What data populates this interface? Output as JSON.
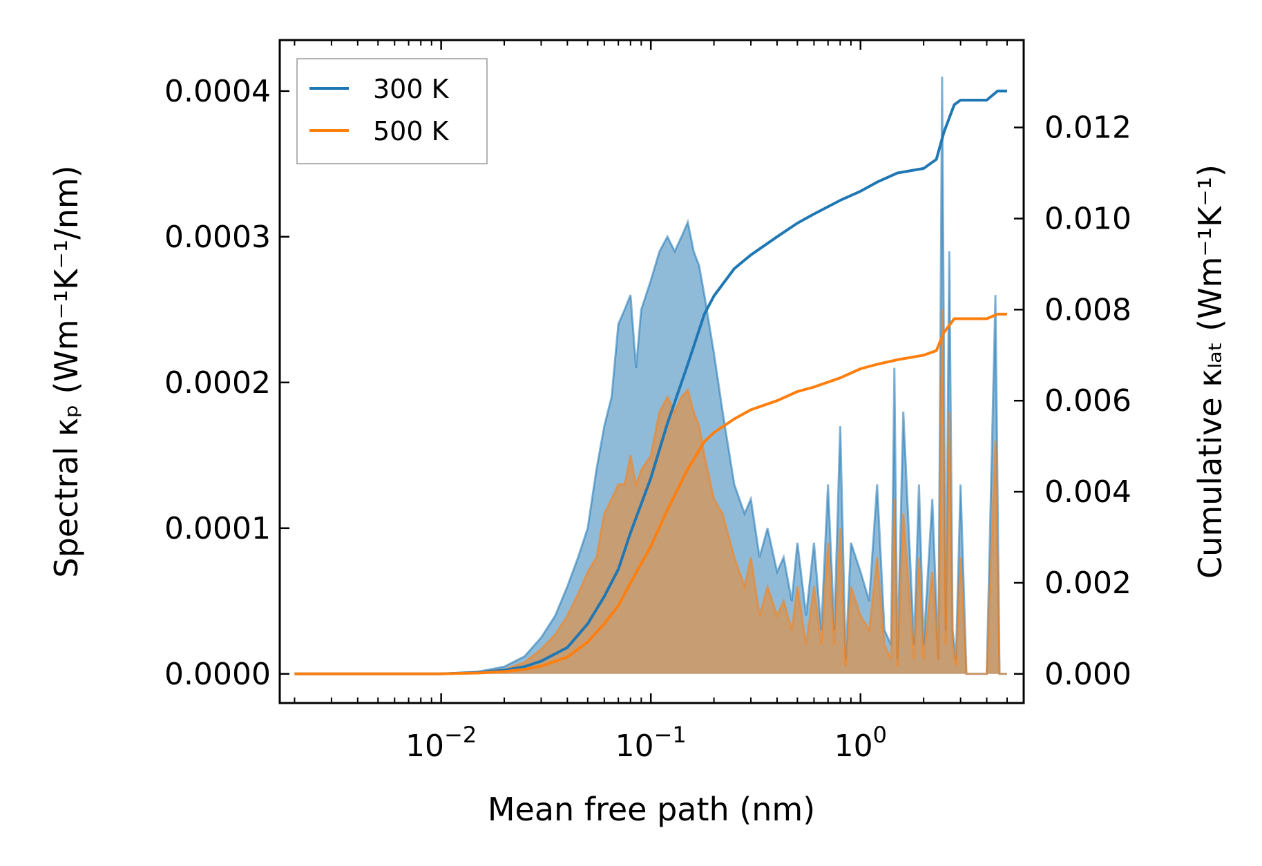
{
  "chart_data": {
    "type": "line",
    "xscale": "log",
    "xlabel": "Mean free path (nm)",
    "ylabel_left": "Spectral κₚ (Wm⁻¹K⁻¹/nm)",
    "ylabel_right": "Cumulative κₗₐₜ (Wm⁻¹K⁻¹)",
    "xlim": [
      0.0017,
      6.0
    ],
    "ylim_left": [
      -2e-05,
      0.000435
    ],
    "ylim_right": [
      -0.00064,
      0.01392
    ],
    "x_ticks": [
      0.01,
      0.1,
      1.0
    ],
    "x_tick_labels": [
      [
        "10",
        "−2"
      ],
      [
        "10",
        "−1"
      ],
      [
        "10",
        "0"
      ]
    ],
    "y_ticks_left": [
      0.0,
      0.0001,
      0.0002,
      0.0003,
      0.0004
    ],
    "y_tick_labels_left": [
      "0.0000",
      "0.0001",
      "0.0002",
      "0.0003",
      "0.0004"
    ],
    "y_ticks_right": [
      0.0,
      0.002,
      0.004,
      0.006,
      0.008,
      0.01,
      0.012
    ],
    "y_tick_labels_right": [
      "0.000",
      "0.002",
      "0.004",
      "0.006",
      "0.008",
      "0.010",
      "0.012"
    ],
    "legend": [
      "300 K",
      "500 K"
    ],
    "legend_position": "top-left",
    "colors": {
      "300K": "#1f77b4",
      "500K": "#ff7f0e"
    },
    "series": [
      {
        "name": "300 K",
        "axis": "right",
        "kind": "cumulative",
        "x": [
          0.002,
          0.005,
          0.01,
          0.015,
          0.02,
          0.025,
          0.03,
          0.04,
          0.05,
          0.06,
          0.07,
          0.08,
          0.1,
          0.12,
          0.15,
          0.18,
          0.2,
          0.25,
          0.3,
          0.4,
          0.5,
          0.6,
          0.8,
          1.0,
          1.2,
          1.5,
          2.0,
          2.3,
          2.5,
          2.8,
          3.0,
          4.0,
          4.5,
          5.0
        ],
        "values": [
          0.0,
          0.0,
          0.0,
          3e-05,
          8e-05,
          0.00016,
          0.00028,
          0.00058,
          0.0011,
          0.0017,
          0.0023,
          0.0031,
          0.0043,
          0.0055,
          0.0068,
          0.0079,
          0.0083,
          0.0089,
          0.0092,
          0.0096,
          0.0099,
          0.0101,
          0.0104,
          0.0106,
          0.0108,
          0.011,
          0.0111,
          0.0113,
          0.0119,
          0.0125,
          0.0126,
          0.0126,
          0.0128,
          0.0128
        ]
      },
      {
        "name": "500 K",
        "axis": "right",
        "kind": "cumulative",
        "x": [
          0.002,
          0.005,
          0.01,
          0.015,
          0.02,
          0.025,
          0.03,
          0.04,
          0.05,
          0.06,
          0.07,
          0.08,
          0.1,
          0.12,
          0.15,
          0.18,
          0.2,
          0.25,
          0.3,
          0.4,
          0.5,
          0.6,
          0.8,
          1.0,
          1.2,
          1.5,
          2.0,
          2.3,
          2.5,
          2.8,
          3.0,
          4.0,
          4.5,
          5.0
        ],
        "values": [
          0.0,
          0.0,
          0.0,
          2e-05,
          5e-05,
          0.0001,
          0.00017,
          0.00037,
          0.0007,
          0.0011,
          0.0015,
          0.002,
          0.0028,
          0.0036,
          0.0045,
          0.0051,
          0.0053,
          0.0056,
          0.0058,
          0.006,
          0.0062,
          0.0063,
          0.0065,
          0.0067,
          0.0068,
          0.0069,
          0.007,
          0.0071,
          0.0075,
          0.0078,
          0.0078,
          0.0078,
          0.0079,
          0.0079
        ]
      },
      {
        "name": "300 K",
        "axis": "left",
        "kind": "spectral",
        "x": [
          0.002,
          0.005,
          0.01,
          0.015,
          0.02,
          0.025,
          0.03,
          0.035,
          0.04,
          0.045,
          0.05,
          0.055,
          0.06,
          0.065,
          0.07,
          0.075,
          0.08,
          0.085,
          0.09,
          0.1,
          0.11,
          0.12,
          0.13,
          0.14,
          0.15,
          0.16,
          0.17,
          0.18,
          0.2,
          0.22,
          0.25,
          0.28,
          0.3,
          0.33,
          0.36,
          0.4,
          0.43,
          0.47,
          0.5,
          0.55,
          0.6,
          0.65,
          0.7,
          0.75,
          0.8,
          0.85,
          0.9,
          1.0,
          1.1,
          1.2,
          1.3,
          1.4,
          1.45,
          1.5,
          1.6,
          1.8,
          1.9,
          2.0,
          2.2,
          2.35,
          2.45,
          2.55,
          2.65,
          2.75,
          2.85,
          3.0,
          3.2,
          3.5,
          4.0,
          4.4,
          4.6,
          4.8,
          5.0
        ],
        "values": [
          0.0,
          0.0,
          0.0,
          1.5e-06,
          5e-06,
          1.2e-05,
          2.5e-05,
          4e-05,
          6e-05,
          8e-05,
          0.0001,
          0.00014,
          0.00017,
          0.00019,
          0.00024,
          0.00025,
          0.00026,
          0.00021,
          0.00025,
          0.00027,
          0.00029,
          0.0003,
          0.00029,
          0.0003,
          0.00031,
          0.00029,
          0.00028,
          0.00026,
          0.00022,
          0.00018,
          0.00013,
          0.00011,
          0.00012,
          8e-05,
          0.0001,
          7e-05,
          8e-05,
          5e-05,
          9e-05,
          4e-05,
          9e-05,
          3e-05,
          0.00013,
          3e-05,
          0.00017,
          1e-05,
          9e-05,
          7e-05,
          5e-05,
          0.00013,
          3e-05,
          2e-05,
          0.00021,
          1e-05,
          0.00018,
          2e-05,
          0.00013,
          2e-05,
          0.00012,
          1e-05,
          0.00041,
          3e-05,
          0.00029,
          3e-05,
          1e-05,
          0.00013,
          0.0,
          0.0,
          0.0,
          0.00026,
          0.0,
          0.0,
          0.0
        ]
      },
      {
        "name": "500 K",
        "axis": "left",
        "kind": "spectral",
        "x": [
          0.002,
          0.005,
          0.01,
          0.015,
          0.02,
          0.025,
          0.03,
          0.035,
          0.04,
          0.045,
          0.05,
          0.055,
          0.06,
          0.065,
          0.07,
          0.075,
          0.08,
          0.085,
          0.09,
          0.1,
          0.11,
          0.12,
          0.13,
          0.14,
          0.15,
          0.16,
          0.17,
          0.18,
          0.2,
          0.22,
          0.25,
          0.28,
          0.3,
          0.33,
          0.36,
          0.4,
          0.43,
          0.47,
          0.5,
          0.55,
          0.6,
          0.65,
          0.7,
          0.75,
          0.8,
          0.85,
          0.9,
          1.0,
          1.1,
          1.2,
          1.3,
          1.4,
          1.45,
          1.5,
          1.6,
          1.8,
          1.9,
          2.0,
          2.2,
          2.35,
          2.45,
          2.55,
          2.65,
          2.75,
          2.85,
          3.0,
          3.2,
          3.5,
          4.0,
          4.4,
          4.6,
          4.8,
          5.0
        ],
        "values": [
          0.0,
          0.0,
          0.0,
          1e-06,
          3e-06,
          8e-06,
          1.7e-05,
          2.7e-05,
          4e-05,
          5.5e-05,
          7e-05,
          8e-05,
          0.00011,
          0.00012,
          0.00013,
          0.00013,
          0.00015,
          0.00013,
          0.00014,
          0.00015,
          0.00018,
          0.00019,
          0.00018,
          0.00019,
          0.000195,
          0.00018,
          0.00017,
          0.00015,
          0.00012,
          0.00011,
          8e-05,
          6e-05,
          8e-05,
          4e-05,
          6e-05,
          4e-05,
          5e-05,
          3e-05,
          6e-05,
          2e-05,
          6e-05,
          2e-05,
          9e-05,
          2e-05,
          0.0001,
          5e-06,
          6e-05,
          4e-05,
          3e-05,
          8e-05,
          2e-05,
          1e-05,
          0.00012,
          5e-06,
          0.00011,
          1e-05,
          8e-05,
          1e-05,
          7e-05,
          1e-05,
          0.00025,
          2e-05,
          0.00018,
          2e-05,
          5e-06,
          8e-05,
          0.0,
          0.0,
          0.0,
          0.00016,
          0.0,
          0.0,
          0.0
        ]
      }
    ]
  }
}
